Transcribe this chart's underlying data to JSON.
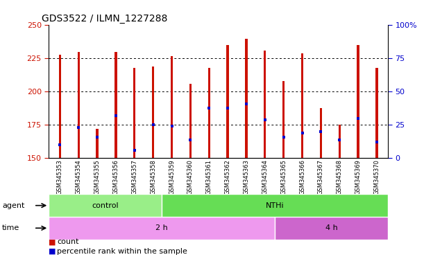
{
  "title": "GDS3522 / ILMN_1227288",
  "samples": [
    "GSM345353",
    "GSM345354",
    "GSM345355",
    "GSM345356",
    "GSM345357",
    "GSM345358",
    "GSM345359",
    "GSM345360",
    "GSM345361",
    "GSM345362",
    "GSM345363",
    "GSM345364",
    "GSM345365",
    "GSM345366",
    "GSM345367",
    "GSM345368",
    "GSM345369",
    "GSM345370"
  ],
  "bar_tops": [
    228,
    230,
    172,
    230,
    218,
    219,
    227,
    206,
    218,
    235,
    240,
    231,
    208,
    229,
    188,
    175,
    235,
    218
  ],
  "blue_dot_y": [
    160,
    173,
    166,
    182,
    156,
    175,
    174,
    164,
    188,
    188,
    191,
    179,
    166,
    169,
    170,
    164,
    180,
    162
  ],
  "bar_base": 150,
  "ylim_left": [
    150,
    250
  ],
  "ylim_right": [
    0,
    100
  ],
  "yticks_left": [
    150,
    175,
    200,
    225,
    250
  ],
  "yticks_right": [
    0,
    25,
    50,
    75,
    100
  ],
  "bar_color": "#cc1100",
  "dot_color": "#0000cc",
  "agent_groups": [
    {
      "label": "control",
      "start": 0,
      "end": 6,
      "color": "#99ee88"
    },
    {
      "label": "NTHi",
      "start": 6,
      "end": 18,
      "color": "#66dd55"
    }
  ],
  "time_groups": [
    {
      "label": "2 h",
      "start": 0,
      "end": 12,
      "color": "#ee99ee"
    },
    {
      "label": "4 h",
      "start": 12,
      "end": 18,
      "color": "#cc66cc"
    }
  ],
  "legend_count_color": "#cc1100",
  "legend_pct_color": "#0000cc",
  "background_color": "#ffffff",
  "plot_bg_color": "#ffffff",
  "tick_label_color_left": "#cc1100",
  "tick_label_color_right": "#0000cc",
  "bar_width": 0.12,
  "dot_size": 3
}
